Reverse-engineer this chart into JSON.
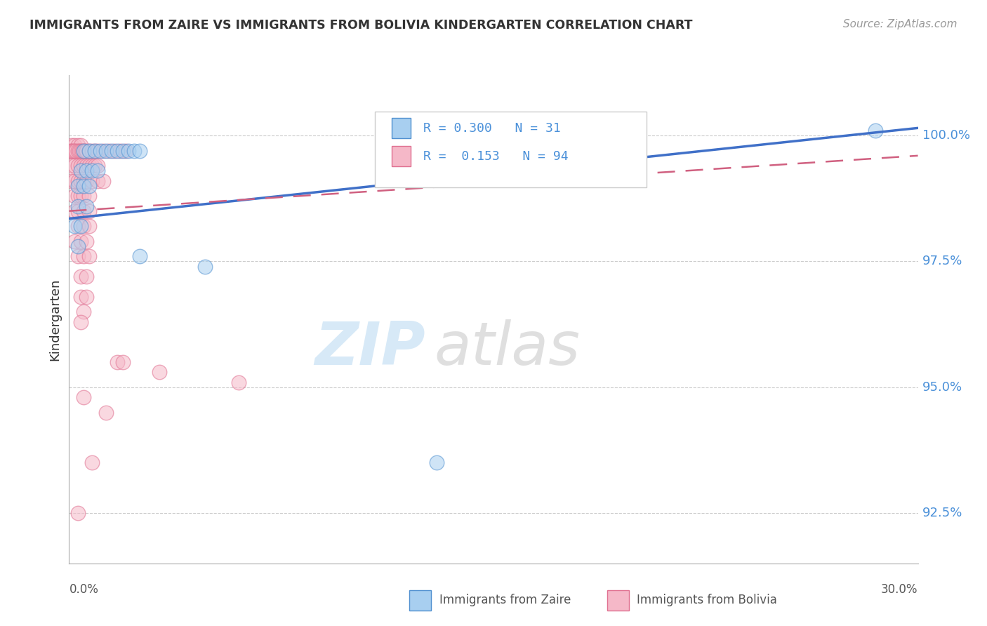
{
  "title": "IMMIGRANTS FROM ZAIRE VS IMMIGRANTS FROM BOLIVIA KINDERGARTEN CORRELATION CHART",
  "source": "Source: ZipAtlas.com",
  "ylabel": "Kindergarten",
  "y_ticks": [
    92.5,
    95.0,
    97.5,
    100.0
  ],
  "y_tick_labels": [
    "92.5%",
    "95.0%",
    "97.5%",
    "100.0%"
  ],
  "legend_zaire": {
    "label": "Immigrants from Zaire",
    "R": 0.3,
    "N": 31,
    "color": "#7ab8e8"
  },
  "legend_bolivia": {
    "label": "Immigrants from Bolivia",
    "R": 0.153,
    "N": 94,
    "color": "#f4a0b5"
  },
  "watermark_zip": "ZIP",
  "watermark_atlas": "atlas",
  "background_color": "#ffffff",
  "zaire_fill": "#a8cff0",
  "zaire_edge": "#5090d0",
  "bolivia_fill": "#f5b8c8",
  "bolivia_edge": "#e07090",
  "zaire_line_color": "#4070c8",
  "bolivia_line_color": "#d06080",
  "tick_label_color": "#4a90d9",
  "zaire_points": [
    [
      0.5,
      99.7
    ],
    [
      0.7,
      99.7
    ],
    [
      0.9,
      99.7
    ],
    [
      1.1,
      99.7
    ],
    [
      1.3,
      99.7
    ],
    [
      1.5,
      99.7
    ],
    [
      1.7,
      99.7
    ],
    [
      1.9,
      99.7
    ],
    [
      2.1,
      99.7
    ],
    [
      2.3,
      99.7
    ],
    [
      2.5,
      99.7
    ],
    [
      0.4,
      99.3
    ],
    [
      0.6,
      99.3
    ],
    [
      0.8,
      99.3
    ],
    [
      1.0,
      99.3
    ],
    [
      0.3,
      99.0
    ],
    [
      0.5,
      99.0
    ],
    [
      0.7,
      99.0
    ],
    [
      0.3,
      98.6
    ],
    [
      0.6,
      98.6
    ],
    [
      0.2,
      98.2
    ],
    [
      0.4,
      98.2
    ],
    [
      0.3,
      97.8
    ],
    [
      2.5,
      97.6
    ],
    [
      4.8,
      97.4
    ],
    [
      13.0,
      93.5
    ],
    [
      28.5,
      100.1
    ]
  ],
  "bolivia_points": [
    [
      0.1,
      99.8
    ],
    [
      0.2,
      99.8
    ],
    [
      0.3,
      99.8
    ],
    [
      0.4,
      99.8
    ],
    [
      0.05,
      99.7
    ],
    [
      0.1,
      99.7
    ],
    [
      0.15,
      99.7
    ],
    [
      0.2,
      99.7
    ],
    [
      0.25,
      99.7
    ],
    [
      0.3,
      99.7
    ],
    [
      0.35,
      99.7
    ],
    [
      0.4,
      99.7
    ],
    [
      0.45,
      99.7
    ],
    [
      0.5,
      99.7
    ],
    [
      0.55,
      99.7
    ],
    [
      0.6,
      99.7
    ],
    [
      0.7,
      99.7
    ],
    [
      0.8,
      99.7
    ],
    [
      0.9,
      99.7
    ],
    [
      1.0,
      99.7
    ],
    [
      1.2,
      99.7
    ],
    [
      1.4,
      99.7
    ],
    [
      1.6,
      99.7
    ],
    [
      1.8,
      99.7
    ],
    [
      2.0,
      99.7
    ],
    [
      0.1,
      99.4
    ],
    [
      0.2,
      99.4
    ],
    [
      0.3,
      99.4
    ],
    [
      0.4,
      99.4
    ],
    [
      0.5,
      99.4
    ],
    [
      0.6,
      99.4
    ],
    [
      0.7,
      99.4
    ],
    [
      0.8,
      99.4
    ],
    [
      0.9,
      99.4
    ],
    [
      1.0,
      99.4
    ],
    [
      0.1,
      99.1
    ],
    [
      0.2,
      99.1
    ],
    [
      0.3,
      99.1
    ],
    [
      0.4,
      99.1
    ],
    [
      0.5,
      99.1
    ],
    [
      0.6,
      99.1
    ],
    [
      0.8,
      99.1
    ],
    [
      1.0,
      99.1
    ],
    [
      1.2,
      99.1
    ],
    [
      0.2,
      98.8
    ],
    [
      0.3,
      98.8
    ],
    [
      0.4,
      98.8
    ],
    [
      0.5,
      98.8
    ],
    [
      0.7,
      98.8
    ],
    [
      0.2,
      98.5
    ],
    [
      0.3,
      98.5
    ],
    [
      0.5,
      98.5
    ],
    [
      0.7,
      98.5
    ],
    [
      0.3,
      98.2
    ],
    [
      0.5,
      98.2
    ],
    [
      0.7,
      98.2
    ],
    [
      0.2,
      97.9
    ],
    [
      0.4,
      97.9
    ],
    [
      0.6,
      97.9
    ],
    [
      0.3,
      97.6
    ],
    [
      0.5,
      97.6
    ],
    [
      0.7,
      97.6
    ],
    [
      0.4,
      97.2
    ],
    [
      0.6,
      97.2
    ],
    [
      0.4,
      96.8
    ],
    [
      0.6,
      96.8
    ],
    [
      0.5,
      96.5
    ],
    [
      0.4,
      96.3
    ],
    [
      1.7,
      95.5
    ],
    [
      1.9,
      95.5
    ],
    [
      3.2,
      95.3
    ],
    [
      6.0,
      95.1
    ],
    [
      0.5,
      94.8
    ],
    [
      1.3,
      94.5
    ],
    [
      0.8,
      93.5
    ],
    [
      0.3,
      92.5
    ]
  ],
  "xlim": [
    0.0,
    30.0
  ],
  "ylim": [
    91.5,
    101.2
  ],
  "zaire_reg_y0": 98.35,
  "zaire_reg_y1": 100.15,
  "bolivia_reg_y0": 98.5,
  "bolivia_reg_y1": 99.6
}
